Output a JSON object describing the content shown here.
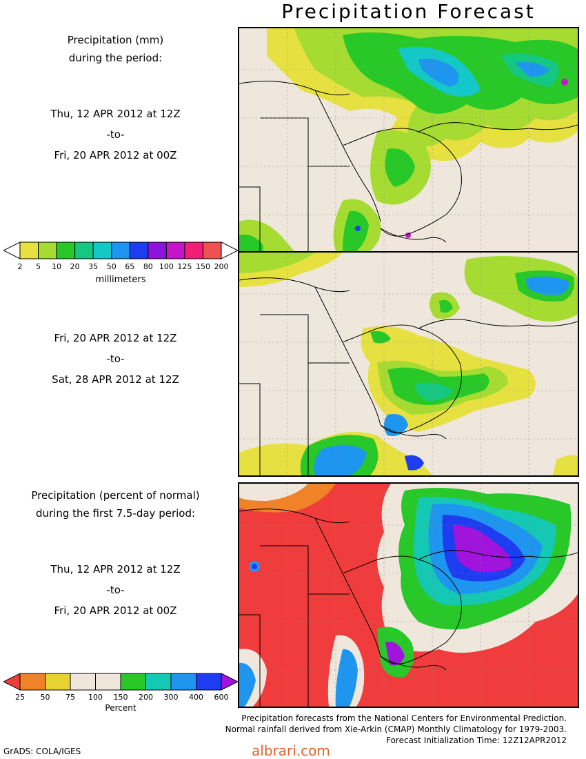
{
  "title": "Precipitation Forecast",
  "panel1": {
    "heading": [
      "Precipitation (mm)",
      "during the period:"
    ],
    "start": "Thu, 12 APR 2012 at 12Z",
    "sep": "-to-",
    "end": "Fri, 20 APR 2012 at 00Z"
  },
  "panel2": {
    "start": "Fri, 20 APR 2012 at 12Z",
    "sep": "-to-",
    "end": "Sat, 28 APR 2012 at 12Z"
  },
  "panel3": {
    "heading": [
      "Precipitation (percent of normal)",
      "during the first 7.5-day period:"
    ],
    "start": "Thu, 12 APR 2012 at 12Z",
    "sep": "-to-",
    "end": "Fri, 20 APR 2012 at 00Z"
  },
  "mm_scale": {
    "labels": [
      "2",
      "5",
      "10",
      "20",
      "35",
      "50",
      "65",
      "80",
      "100",
      "125",
      "150",
      "200"
    ],
    "colors": [
      "#ffffff",
      "#e6e040",
      "#a6dc32",
      "#28c828",
      "#14c882",
      "#14c8c8",
      "#1e96f0",
      "#1e3cf0",
      "#8c14dc",
      "#c814c8",
      "#f01e78",
      "#f05050",
      "#ffffff"
    ],
    "units": "millimeters"
  },
  "pct_scale": {
    "labels": [
      "25",
      "50",
      "75",
      "100",
      "150",
      "200",
      "300",
      "400",
      "600"
    ],
    "colors": [
      "#f03c3c",
      "#f08228",
      "#e6d232",
      "#efe6dc",
      "#efe6dc",
      "#28c828",
      "#14c8b4",
      "#1e96f0",
      "#1e3cf0",
      "#a014dc"
    ],
    "units": "Percent"
  },
  "credits": [
    "Precipitation forecasts from the National Centers for Environmental Prediction.",
    "Normal rainfall derived from Xie-Arkin (CMAP) Monthly Climatology for 1979-2003.",
    "Forecast Initialization Time: 12Z12APR2012"
  ],
  "grads": "GrADS: COLA/IGES",
  "watermark": "albrari.com",
  "colors": {
    "land": "#efe6dc",
    "red_fill": "#f03c3c"
  }
}
